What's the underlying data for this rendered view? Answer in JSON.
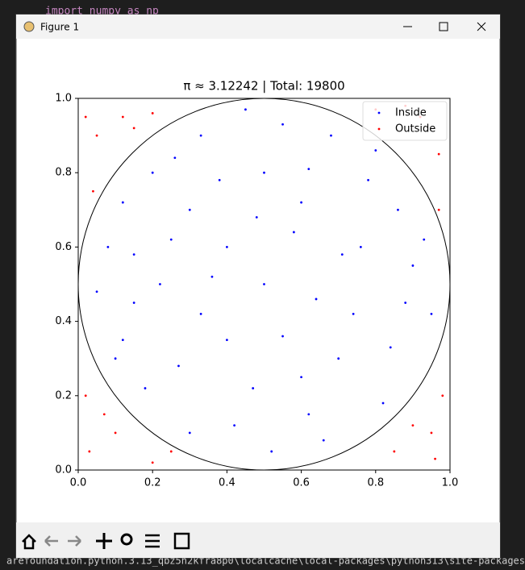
{
  "editor": {
    "code_line": "import numpy as np",
    "terminal_line": "arefoundation.python.3.13_qbz5n2kfra8p0\\localcache\\local-packages\\python313\\site-packages (f"
  },
  "window": {
    "title": "Figure 1"
  },
  "chart_data": {
    "type": "scatter",
    "title": "π ≈ 3.12242 | Total: 19800",
    "xlim": [
      0,
      1
    ],
    "ylim": [
      0,
      1
    ],
    "xticks": [
      {
        "value": 0,
        "label": "0.0"
      },
      0.2,
      0.4,
      0.6,
      0.8,
      {
        "value": 1,
        "label": "1.0"
      }
    ],
    "yticks": [
      {
        "value": 0,
        "label": "0.0"
      },
      0.2,
      0.4,
      0.6,
      0.8,
      {
        "value": 1,
        "label": "1.0"
      }
    ],
    "legend": "upper right",
    "circle": {
      "center": [
        0.5,
        0.5
      ],
      "radius": 0.5,
      "color": "#000000"
    },
    "series": [
      {
        "name": "Inside",
        "color": "#0000ff",
        "x": [
          0.5,
          0.3,
          0.62,
          0.15,
          0.84,
          0.42,
          0.71,
          0.27,
          0.55,
          0.9,
          0.08,
          0.36,
          0.6,
          0.2,
          0.78,
          0.48,
          0.12,
          0.66,
          0.33,
          0.95,
          0.52,
          0.25,
          0.74,
          0.58,
          0.4,
          0.86,
          0.18,
          0.68,
          0.05,
          0.45,
          0.82,
          0.3,
          0.12,
          0.93,
          0.38,
          0.64,
          0.22,
          0.55,
          0.76,
          0.47,
          0.33,
          0.6,
          0.88,
          0.1,
          0.7,
          0.5,
          0.26,
          0.8,
          0.4,
          0.15,
          0.62
        ],
        "y": [
          0.5,
          0.7,
          0.81,
          0.45,
          0.33,
          0.12,
          0.58,
          0.28,
          0.93,
          0.55,
          0.6,
          0.52,
          0.25,
          0.8,
          0.78,
          0.68,
          0.35,
          0.08,
          0.9,
          0.42,
          0.05,
          0.62,
          0.42,
          0.64,
          0.35,
          0.7,
          0.22,
          0.9,
          0.48,
          0.97,
          0.18,
          0.1,
          0.72,
          0.62,
          0.78,
          0.46,
          0.5,
          0.36,
          0.6,
          0.22,
          0.42,
          0.72,
          0.45,
          0.3,
          0.3,
          0.8,
          0.84,
          0.86,
          0.6,
          0.58,
          0.15
        ]
      },
      {
        "name": "Outside",
        "color": "#ff0000",
        "x": [
          0.03,
          0.1,
          0.05,
          0.12,
          0.2,
          0.02,
          0.92,
          0.97,
          0.88,
          0.95,
          0.85,
          0.98,
          0.9,
          0.02,
          0.15,
          0.07,
          0.8,
          0.96,
          0.25,
          0.04,
          0.97,
          0.2
        ],
        "y": [
          0.05,
          0.1,
          0.9,
          0.95,
          0.02,
          0.2,
          0.95,
          0.85,
          0.98,
          0.1,
          0.05,
          0.2,
          0.12,
          0.95,
          0.92,
          0.15,
          0.97,
          0.03,
          0.05,
          0.75,
          0.7,
          0.96
        ]
      }
    ]
  }
}
